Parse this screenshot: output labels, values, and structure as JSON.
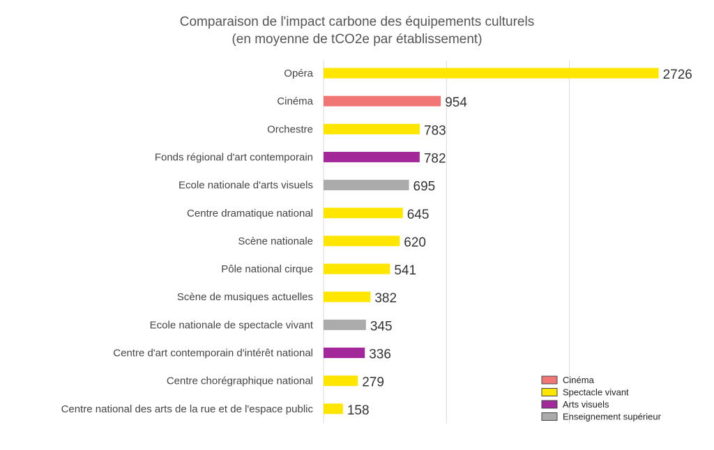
{
  "chart_data": {
    "type": "bar",
    "orientation": "horizontal",
    "title": "Comparaison de l'impact carbone des équipements culturels",
    "subtitle": "(en moyenne de tCO2e par établissement)",
    "xlabel": "",
    "ylabel": "",
    "xlim": [
      0,
      3000
    ],
    "grid": true,
    "gridlines_at": [
      0,
      1000,
      2000
    ],
    "legend_position": "bottom-right",
    "categories": [
      "Opéra",
      "Cinéma",
      "Orchestre",
      "Fonds régional d'art contemporain",
      "Ecole nationale d'arts visuels",
      "Centre dramatique national",
      "Scène nationale",
      "Pôle national cirque",
      "Scène de musiques actuelles",
      "Ecole nationale de spectacle vivant",
      "Centre d'art contemporain d'intérêt national",
      "Centre chorégraphique national",
      "Centre national des arts de la rue et de l'espace public"
    ],
    "values": [
      2726,
      954,
      783,
      782,
      695,
      645,
      620,
      541,
      382,
      345,
      336,
      279,
      158
    ],
    "value_labels": [
      "2726",
      "954",
      "783",
      "782",
      "695",
      "645",
      "620",
      "541",
      "382",
      "345",
      "336",
      "279",
      "158"
    ],
    "groups": [
      "spectacle",
      "cinema",
      "spectacle",
      "arts",
      "enseignement",
      "spectacle",
      "spectacle",
      "spectacle",
      "spectacle",
      "enseignement",
      "arts",
      "spectacle",
      "spectacle"
    ],
    "legend": [
      {
        "key": "cinema",
        "label": "Cinéma",
        "color": "#F07676"
      },
      {
        "key": "spectacle",
        "label": "Spectacle vivant",
        "color": "#FFE600"
      },
      {
        "key": "arts",
        "label": "Arts visuels",
        "color": "#A3299A"
      },
      {
        "key": "enseignement",
        "label": "Enseignement supérieur",
        "color": "#ABABAB"
      }
    ]
  }
}
